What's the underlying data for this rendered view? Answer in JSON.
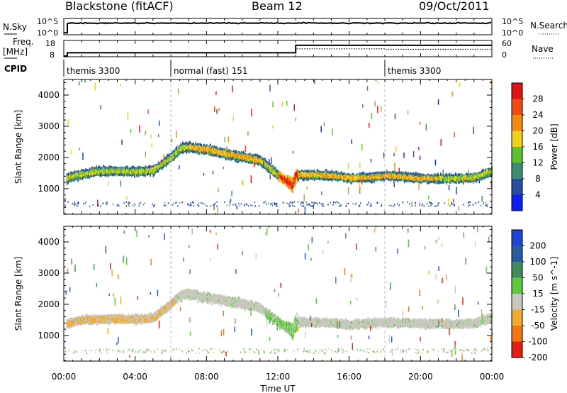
{
  "header": {
    "station": "Blackstone (fitACF)",
    "beam": "Beam 12",
    "date": "09/Oct/2011"
  },
  "nsky_panel": {
    "left_label": "N.Sky",
    "right_label": "N.Search",
    "left_ticks": [
      "10^5",
      "10^0"
    ],
    "right_ticks": [
      "10^5",
      "10^0"
    ]
  },
  "freq_panel": {
    "left_label_1": "Freq.",
    "left_label_2": "[MHz]",
    "right_label": "Nave",
    "left_ticks": [
      "18",
      "8"
    ],
    "right_ticks": [
      "60",
      "0"
    ]
  },
  "cpid": {
    "label": "CPID",
    "segments": [
      {
        "start_hour": 0,
        "name": "themis 3300"
      },
      {
        "start_hour": 6,
        "name": "normal (fast) 151"
      },
      {
        "start_hour": 18,
        "name": "themis 3300"
      }
    ]
  },
  "chart_data": [
    {
      "type": "line",
      "title": "",
      "ylabel": "N.Sky",
      "y_scale": "log",
      "x_range_hours": [
        0,
        24
      ],
      "series": [
        {
          "name": "N.Sky",
          "style": "solid",
          "x": [
            0.0,
            0.1,
            0.2,
            24.0
          ],
          "y_log10": [
            0.2,
            0.2,
            4.0,
            4.0
          ]
        },
        {
          "name": "N.Search",
          "style": "dotted",
          "x": [
            0.0,
            24.0
          ],
          "y_log10": [
            0.0,
            0.0
          ]
        }
      ]
    },
    {
      "type": "line",
      "title": "",
      "ylabel": "Freq. [MHz]",
      "y_range": [
        8,
        18
      ],
      "y2label": "Nave",
      "y2_range": [
        0,
        60
      ],
      "series": [
        {
          "name": "Freq.",
          "style": "solid",
          "x": [
            0.0,
            0.2,
            0.2,
            13.0,
            13.0,
            24.0
          ],
          "y": [
            8.0,
            8.0,
            10.2,
            10.2,
            15.2,
            15.2
          ]
        },
        {
          "name": "Nave",
          "style": "dotted",
          "axis": "y2",
          "x": [
            0.2,
            13.0,
            13.0,
            18.0,
            18.0,
            24.0
          ],
          "y": [
            14,
            14,
            29,
            29,
            27,
            27
          ]
        }
      ]
    },
    {
      "type": "heatmap",
      "title": "",
      "xlabel": "Time UT",
      "ylabel": "Slant Range [km]",
      "x_ticks": [
        "00:00",
        "04:00",
        "08:00",
        "12:00",
        "16:00",
        "20:00",
        "00:00"
      ],
      "x_range_hours": [
        0,
        24
      ],
      "y_ticks": [
        1000,
        2000,
        3000,
        4000
      ],
      "y_range_km": [
        180,
        4500
      ],
      "colorbar": {
        "label": "Power [dB]",
        "ticks": [
          "4",
          "8",
          "12",
          "16",
          "20",
          "24",
          "28"
        ]
      },
      "band_center_km": [
        [
          0,
          1320
        ],
        [
          1,
          1460
        ],
        [
          2,
          1560
        ],
        [
          3,
          1560
        ],
        [
          4,
          1540
        ],
        [
          5,
          1580
        ],
        [
          6,
          2000
        ],
        [
          6.5,
          2280
        ],
        [
          7,
          2330
        ],
        [
          8,
          2250
        ],
        [
          9,
          2120
        ],
        [
          10,
          2020
        ],
        [
          11,
          1900
        ],
        [
          12,
          1420
        ],
        [
          12.8,
          1120
        ],
        [
          13,
          1440
        ],
        [
          14,
          1440
        ],
        [
          15,
          1420
        ],
        [
          16,
          1340
        ],
        [
          17,
          1350
        ],
        [
          18,
          1420
        ],
        [
          19,
          1380
        ],
        [
          20,
          1330
        ],
        [
          21,
          1320
        ],
        [
          22,
          1330
        ],
        [
          23,
          1350
        ],
        [
          24,
          1560
        ]
      ]
    },
    {
      "type": "heatmap",
      "title": "",
      "xlabel": "Time UT",
      "ylabel": "Slant Range [km]",
      "x_ticks": [
        "00:00",
        "04:00",
        "08:00",
        "12:00",
        "16:00",
        "20:00",
        "00:00"
      ],
      "x_range_hours": [
        0,
        24
      ],
      "y_ticks": [
        1000,
        2000,
        3000,
        4000
      ],
      "y_range_km": [
        180,
        4500
      ],
      "colorbar": {
        "label": "Velocity [m s^-1]",
        "ticks": [
          "200",
          "100",
          "50",
          "15",
          "-15",
          "-50",
          "-100",
          "-200"
        ]
      },
      "band_center_km": [
        [
          0,
          1340
        ],
        [
          1,
          1500
        ],
        [
          2,
          1520
        ],
        [
          3,
          1530
        ],
        [
          4,
          1520
        ],
        [
          5,
          1560
        ],
        [
          6,
          2000
        ],
        [
          6.5,
          2280
        ],
        [
          7,
          2340
        ],
        [
          8,
          2200
        ],
        [
          9,
          2120
        ],
        [
          10,
          2010
        ],
        [
          11,
          1880
        ],
        [
          12,
          1420
        ],
        [
          12.8,
          1150
        ],
        [
          13,
          1420
        ],
        [
          14,
          1420
        ],
        [
          15,
          1400
        ],
        [
          16,
          1350
        ],
        [
          17,
          1380
        ],
        [
          18,
          1420
        ],
        [
          19,
          1400
        ],
        [
          20,
          1380
        ],
        [
          21,
          1370
        ],
        [
          22,
          1370
        ],
        [
          23,
          1380
        ],
        [
          24,
          1580
        ]
      ]
    }
  ],
  "colors": {
    "power_scale": [
      "#0c1ef0",
      "#2a4ca0",
      "#3a8e72",
      "#5cc22e",
      "#f0d21e",
      "#f08c14",
      "#f04a14",
      "#e01414"
    ],
    "velocity_scale": [
      "#1e46d2",
      "#2a5aa0",
      "#3e8c5a",
      "#5cc83c",
      "#c8c8be",
      "#f0aa32",
      "#f07814",
      "#e01e14"
    ]
  }
}
